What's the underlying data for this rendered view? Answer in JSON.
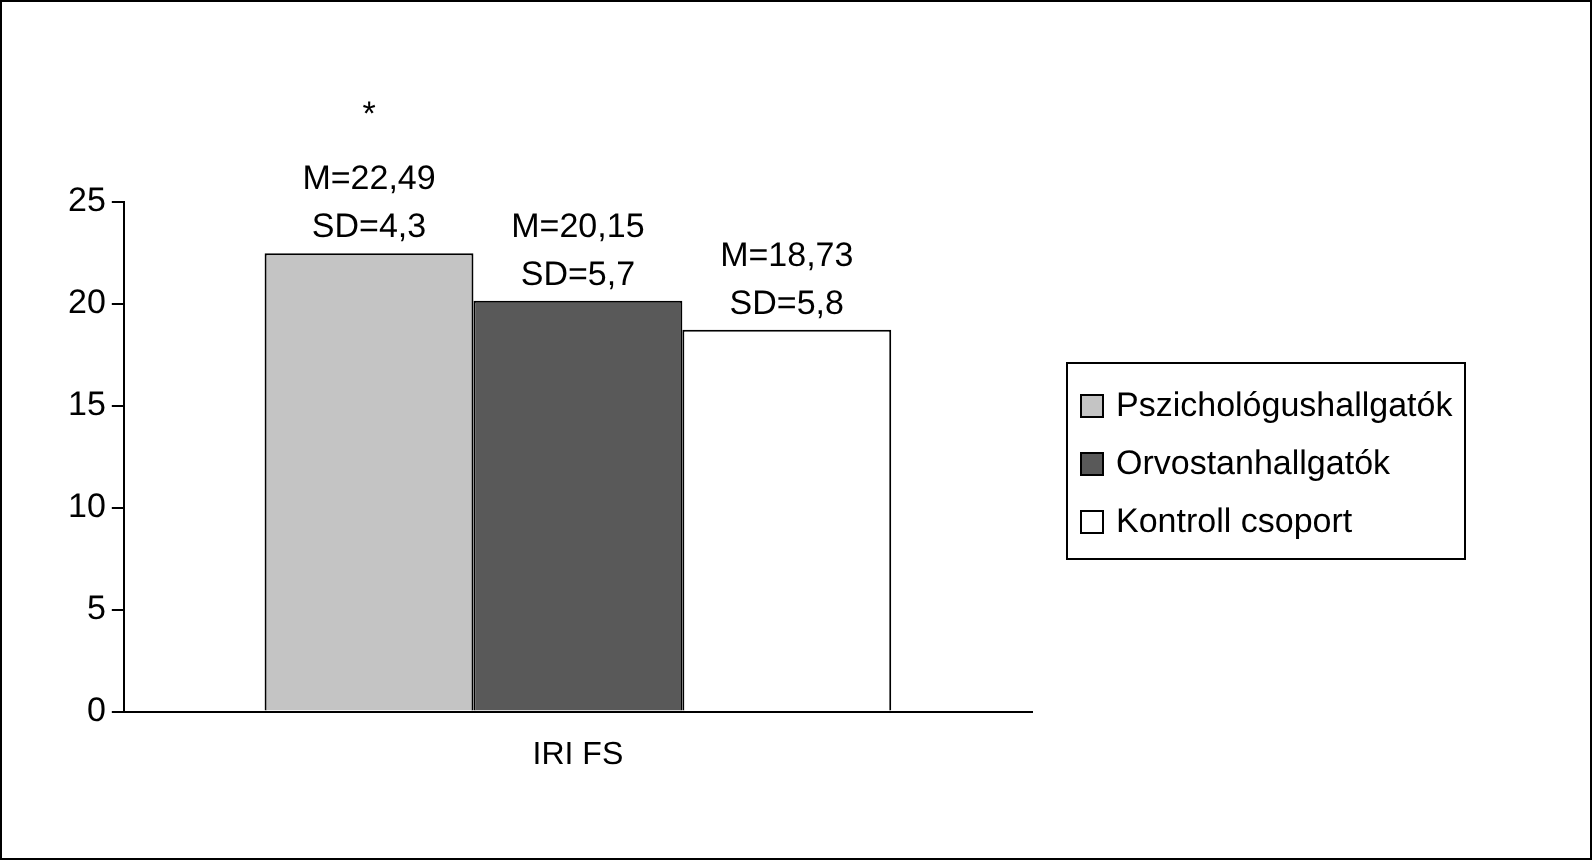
{
  "chart_data": {
    "type": "bar",
    "categories": [
      "IRI FS"
    ],
    "series": [
      {
        "name": "Pszichológushallgatók",
        "color": "#c4c4c4",
        "values": [
          22.49
        ],
        "value_labels": [
          "M=22,49\nSD=4,3"
        ]
      },
      {
        "name": "Orvostanhallgatók",
        "color": "#595959",
        "values": [
          20.15
        ],
        "value_labels": [
          "M=20,15\nSD=5,7"
        ]
      },
      {
        "name": "Kontroll csoport",
        "color": "#ffffff",
        "values": [
          18.73
        ],
        "value_labels": [
          "M=18,73\nSD=5,8"
        ]
      }
    ],
    "ylim": [
      0,
      25
    ],
    "yticks": [
      0,
      5,
      10,
      15,
      20,
      25
    ],
    "grid": false,
    "legend": "right",
    "annotations": [
      "*"
    ]
  }
}
